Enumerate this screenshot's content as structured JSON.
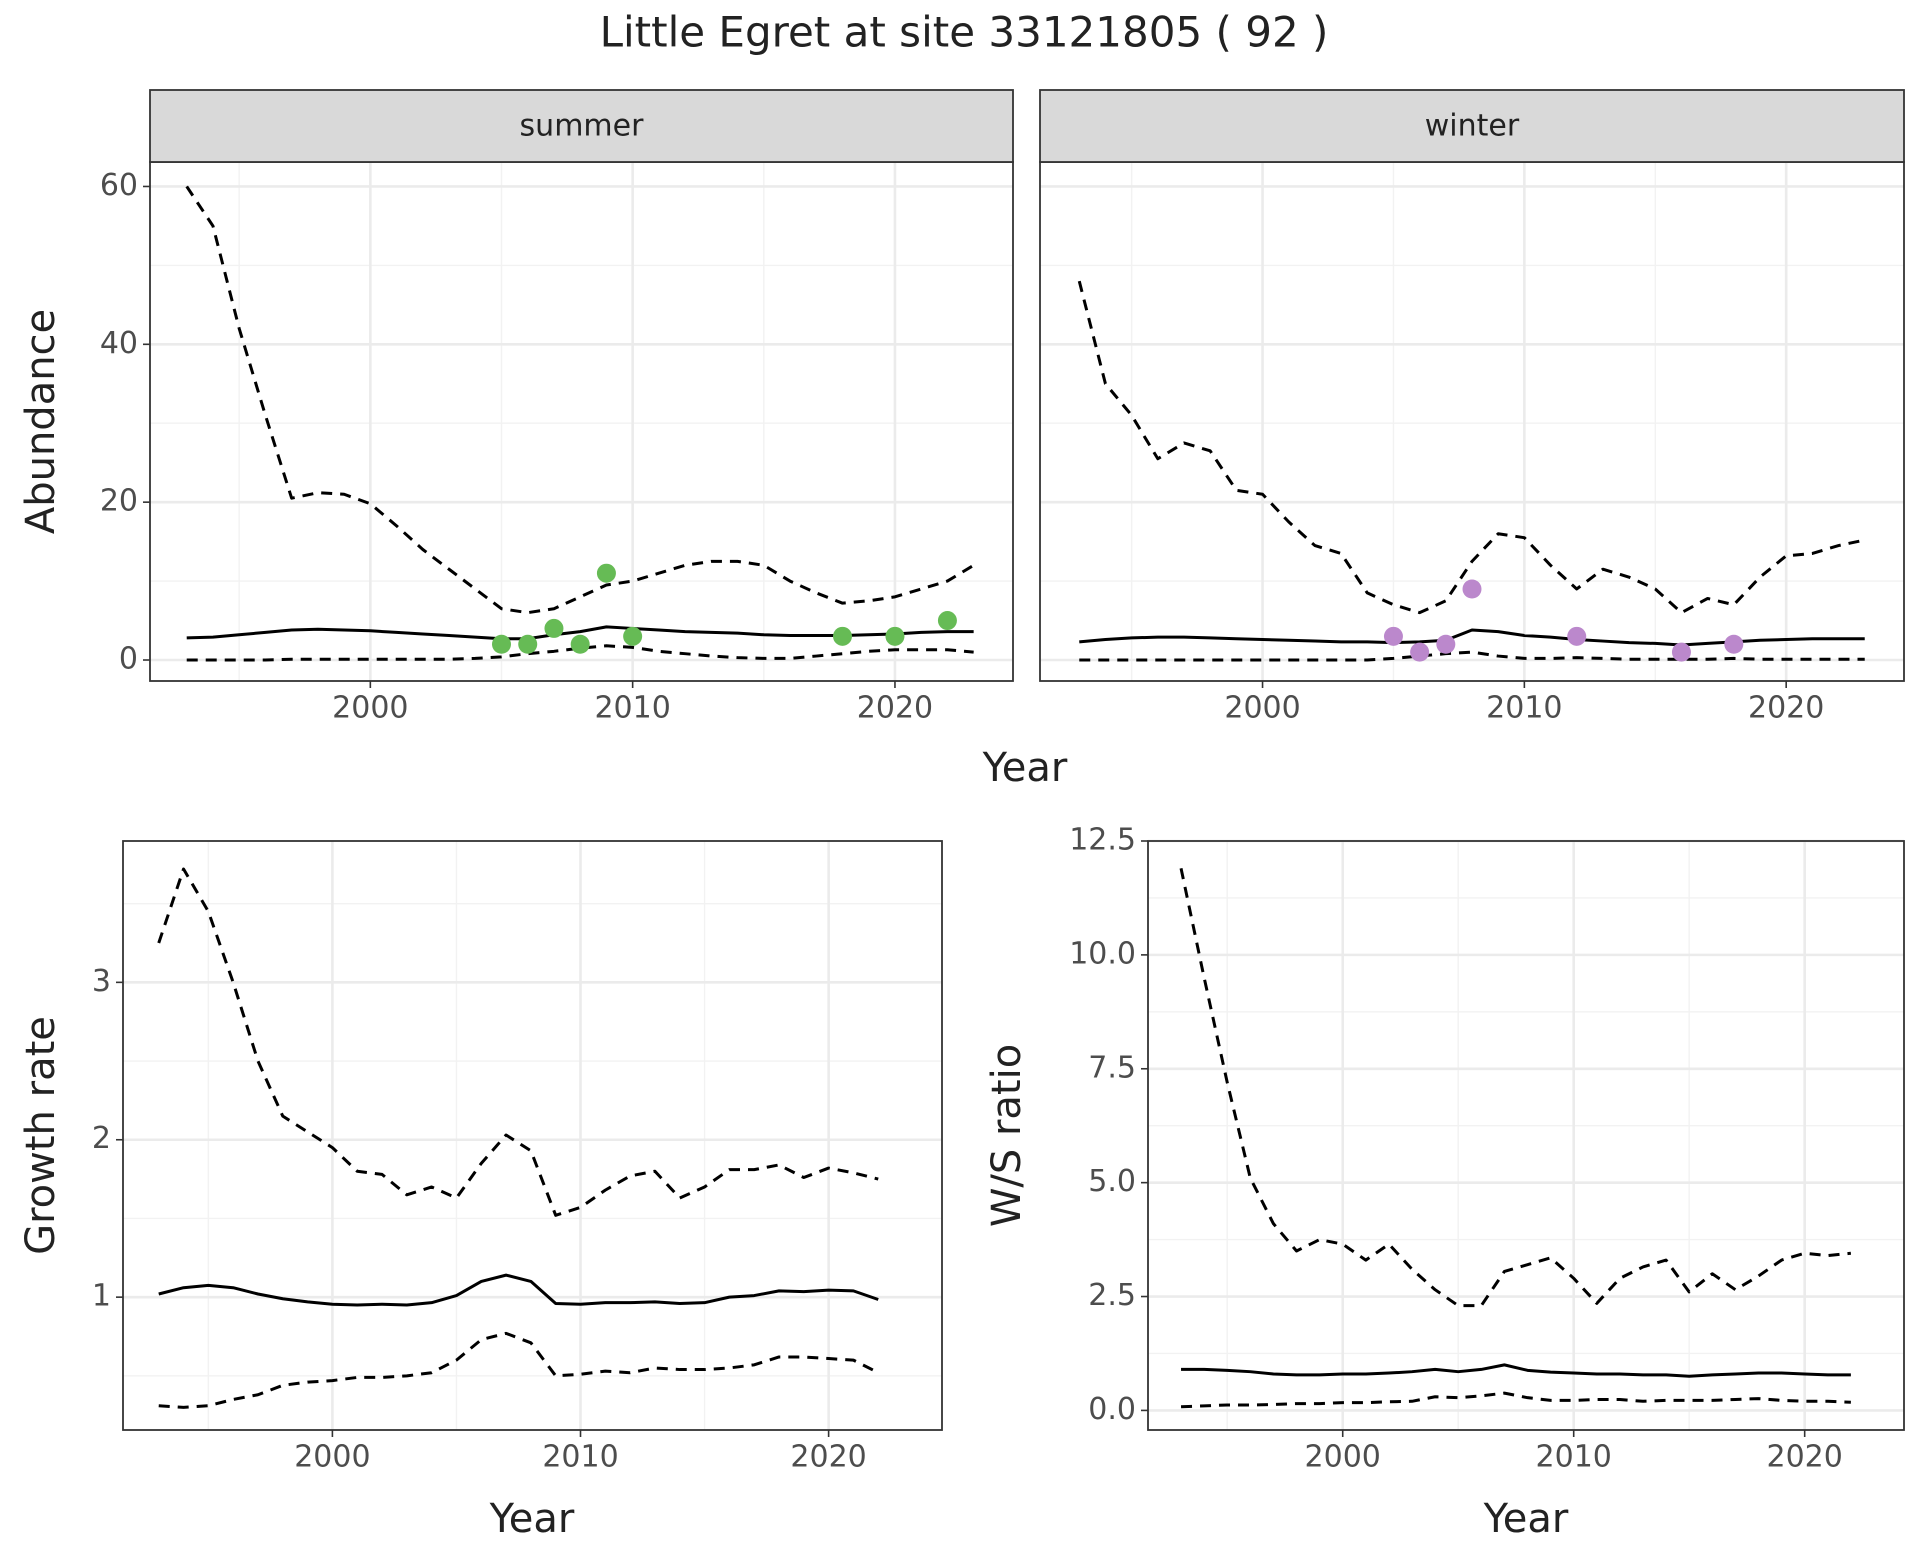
{
  "title": "Little Egret at site 33121805 ( 92 )",
  "chart_data": [
    {
      "type": "line",
      "strip": "summer",
      "xlabel": "Year",
      "ylabel": "Abundance",
      "x": [
        1993,
        1994,
        1995,
        1996,
        1997,
        1998,
        1999,
        2000,
        2001,
        2002,
        2003,
        2004,
        2005,
        2006,
        2007,
        2008,
        2009,
        2010,
        2011,
        2012,
        2013,
        2014,
        2015,
        2016,
        2017,
        2018,
        2019,
        2020,
        2021,
        2022,
        2023
      ],
      "series": [
        {
          "color": "#000000",
          "dashed": true,
          "values": [
            60,
            55,
            42,
            31,
            20.5,
            21.2,
            21,
            19.8,
            17,
            14,
            11.5,
            9,
            6.5,
            6,
            6.5,
            8,
            9.5,
            10,
            11,
            12,
            12.5,
            12.5,
            12,
            10,
            8.5,
            7.2,
            7.5,
            8,
            9,
            10,
            12
          ]
        },
        {
          "color": "#000000",
          "dashed": false,
          "values": [
            2.8,
            2.9,
            3.2,
            3.5,
            3.8,
            3.9,
            3.8,
            3.7,
            3.5,
            3.3,
            3.1,
            2.9,
            2.7,
            2.7,
            3.2,
            3.6,
            4.2,
            4.0,
            3.8,
            3.6,
            3.5,
            3.4,
            3.2,
            3.1,
            3.1,
            3.1,
            3.2,
            3.3,
            3.5,
            3.6,
            3.6
          ]
        },
        {
          "color": "#000000",
          "dashed": true,
          "values": [
            0,
            0,
            0,
            0,
            0.1,
            0.1,
            0.1,
            0.1,
            0.1,
            0.1,
            0.1,
            0.2,
            0.4,
            0.8,
            1.1,
            1.5,
            1.8,
            1.6,
            1.1,
            0.8,
            0.5,
            0.3,
            0.2,
            0.2,
            0.5,
            0.8,
            1.1,
            1.3,
            1.3,
            1.3,
            1.0
          ]
        }
      ],
      "points": {
        "color": "#66bb55",
        "x": [
          2005,
          2006,
          2007,
          2008,
          2009,
          2010,
          2018,
          2020,
          2022
        ],
        "values": [
          2,
          2,
          4,
          2,
          11,
          3,
          3,
          3,
          5
        ]
      },
      "xlim": [
        1991.6,
        2024.5
      ],
      "ylim": [
        -2.66,
        63.1
      ],
      "xticks": [
        2000,
        2010,
        2020
      ],
      "yticks": [
        0,
        20,
        40,
        60
      ],
      "grid": true,
      "ytick_labels": true
    },
    {
      "type": "line",
      "strip": "winter",
      "x": [
        1993,
        1994,
        1995,
        1996,
        1997,
        1998,
        1999,
        2000,
        2001,
        2002,
        2003,
        2004,
        2005,
        2006,
        2007,
        2008,
        2009,
        2010,
        2011,
        2012,
        2013,
        2014,
        2015,
        2016,
        2017,
        2018,
        2019,
        2020,
        2021,
        2022,
        2023
      ],
      "series": [
        {
          "color": "#000000",
          "dashed": true,
          "values": [
            48,
            35,
            31,
            25.5,
            27.5,
            26.5,
            21.5,
            21,
            17.5,
            14.5,
            13.5,
            8.5,
            7,
            6,
            7.5,
            12.5,
            16,
            15.5,
            12,
            9,
            11.5,
            10.5,
            9,
            6,
            7.8,
            7,
            10.5,
            13.2,
            13.5,
            14.5,
            15.2
          ]
        },
        {
          "color": "#000000",
          "dashed": false,
          "values": [
            2.3,
            2.6,
            2.8,
            2.9,
            2.9,
            2.8,
            2.7,
            2.6,
            2.5,
            2.4,
            2.3,
            2.3,
            2.2,
            2.3,
            2.5,
            3.8,
            3.6,
            3.1,
            2.9,
            2.6,
            2.4,
            2.2,
            2.1,
            1.9,
            2.1,
            2.3,
            2.5,
            2.6,
            2.7,
            2.7,
            2.7
          ]
        },
        {
          "color": "#000000",
          "dashed": true,
          "values": [
            0,
            0,
            0,
            0,
            0,
            0,
            0,
            0,
            0,
            0,
            0,
            0,
            0.2,
            0.5,
            0.8,
            1.0,
            0.5,
            0.2,
            0.2,
            0.3,
            0.2,
            0.1,
            0.1,
            0.1,
            0.1,
            0.2,
            0.1,
            0.1,
            0.1,
            0.1,
            0.1
          ]
        }
      ],
      "points": {
        "color": "#bb88cc",
        "x": [
          2005,
          2006,
          2007,
          2008,
          2012,
          2016,
          2018
        ],
        "values": [
          3,
          1,
          2,
          9,
          3,
          1,
          2
        ]
      },
      "xlim": [
        1991.5,
        2024.5
      ],
      "ylim": [
        -2.66,
        63.1
      ],
      "xticks": [
        2000,
        2010,
        2020
      ],
      "yticks": [
        0,
        20,
        40,
        60
      ],
      "grid": true,
      "ytick_labels": false
    },
    {
      "type": "line",
      "xlabel": "Year",
      "ylabel": "Growth rate",
      "x": [
        1993,
        1994,
        1995,
        1996,
        1997,
        1998,
        1999,
        2000,
        2001,
        2002,
        2003,
        2004,
        2005,
        2006,
        2007,
        2008,
        2009,
        2010,
        2011,
        2012,
        2013,
        2014,
        2015,
        2016,
        2017,
        2018,
        2019,
        2020,
        2021,
        2022
      ],
      "series": [
        {
          "color": "#000000",
          "dashed": true,
          "values": [
            3.25,
            3.72,
            3.45,
            3.0,
            2.5,
            2.15,
            2.05,
            1.95,
            1.8,
            1.78,
            1.65,
            1.7,
            1.63,
            1.85,
            2.03,
            1.93,
            1.52,
            1.57,
            1.68,
            1.77,
            1.8,
            1.63,
            1.7,
            1.81,
            1.81,
            1.84,
            1.76,
            1.82,
            1.79,
            1.75
          ]
        },
        {
          "color": "#000000",
          "dashed": false,
          "values": [
            1.02,
            1.06,
            1.075,
            1.06,
            1.02,
            0.99,
            0.97,
            0.955,
            0.95,
            0.955,
            0.95,
            0.965,
            1.01,
            1.1,
            1.14,
            1.1,
            0.96,
            0.955,
            0.965,
            0.965,
            0.97,
            0.96,
            0.965,
            1.0,
            1.01,
            1.04,
            1.035,
            1.045,
            1.04,
            0.985
          ]
        },
        {
          "color": "#000000",
          "dashed": true,
          "values": [
            0.31,
            0.3,
            0.31,
            0.35,
            0.38,
            0.44,
            0.46,
            0.47,
            0.49,
            0.49,
            0.5,
            0.52,
            0.6,
            0.73,
            0.77,
            0.71,
            0.5,
            0.51,
            0.53,
            0.52,
            0.55,
            0.54,
            0.54,
            0.55,
            0.57,
            0.62,
            0.62,
            0.61,
            0.6,
            0.52
          ]
        }
      ],
      "xlim": [
        1991.56,
        2024.57
      ],
      "ylim": [
        0.156,
        3.898
      ],
      "xticks": [
        2000,
        2010,
        2020
      ],
      "yticks": [
        1,
        2,
        3
      ],
      "grid": true,
      "ytick_labels": true
    },
    {
      "type": "line",
      "xlabel": "Year",
      "ylabel": "W/S ratio",
      "x": [
        1993,
        1994,
        1995,
        1996,
        1997,
        1998,
        1999,
        2000,
        2001,
        2002,
        2003,
        2004,
        2005,
        2006,
        2007,
        2008,
        2009,
        2010,
        2011,
        2012,
        2013,
        2014,
        2015,
        2016,
        2017,
        2018,
        2019,
        2020,
        2021,
        2022
      ],
      "series": [
        {
          "color": "#000000",
          "dashed": true,
          "values": [
            11.9,
            9.5,
            7.2,
            5.1,
            4.1,
            3.5,
            3.75,
            3.65,
            3.3,
            3.65,
            3.1,
            2.65,
            2.3,
            2.3,
            3.05,
            3.2,
            3.35,
            2.9,
            2.35,
            2.9,
            3.15,
            3.3,
            2.6,
            3.0,
            2.65,
            2.95,
            3.3,
            3.45,
            3.4,
            3.45
          ]
        },
        {
          "color": "#000000",
          "dashed": false,
          "values": [
            0.9,
            0.9,
            0.88,
            0.85,
            0.8,
            0.78,
            0.78,
            0.8,
            0.8,
            0.82,
            0.85,
            0.9,
            0.85,
            0.9,
            1.0,
            0.88,
            0.84,
            0.82,
            0.8,
            0.8,
            0.78,
            0.78,
            0.75,
            0.78,
            0.8,
            0.82,
            0.82,
            0.8,
            0.78,
            0.78
          ]
        },
        {
          "color": "#000000",
          "dashed": true,
          "values": [
            0.08,
            0.1,
            0.12,
            0.12,
            0.13,
            0.15,
            0.15,
            0.17,
            0.17,
            0.19,
            0.2,
            0.3,
            0.28,
            0.32,
            0.38,
            0.28,
            0.22,
            0.22,
            0.24,
            0.24,
            0.2,
            0.22,
            0.22,
            0.22,
            0.24,
            0.26,
            0.22,
            0.2,
            0.2,
            0.18
          ]
        }
      ],
      "xlim": [
        1991.57,
        2024.3
      ],
      "ylim": [
        -0.43,
        12.5
      ],
      "xticks": [
        2000,
        2010,
        2020
      ],
      "yticks": [
        {
          "value": 0,
          "label": "0.0"
        },
        2.5,
        {
          "value": 5,
          "label": "5.0"
        },
        7.5,
        {
          "value": 10,
          "label": "10.0"
        },
        12.5
      ],
      "grid": true,
      "ytick_labels": true
    }
  ]
}
